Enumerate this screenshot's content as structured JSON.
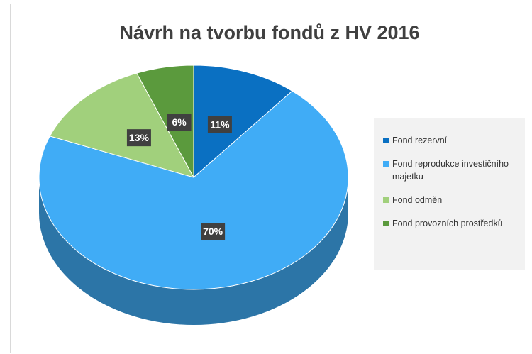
{
  "chart_data": {
    "type": "pie",
    "title": "Návrh na tvorbu fondů z HV 2016",
    "categories": [
      "Fond rezervní",
      "Fond reprodukce investičního majetku",
      "Fond odměn",
      "Fond provozních prostředků"
    ],
    "values": [
      11,
      70,
      13,
      6
    ],
    "value_labels": [
      "11%",
      "70%",
      "13%",
      "6%"
    ],
    "colors": [
      "#0a70c2",
      "#40acf6",
      "#a1d07c",
      "#5b9a3d"
    ],
    "legend": "right"
  }
}
